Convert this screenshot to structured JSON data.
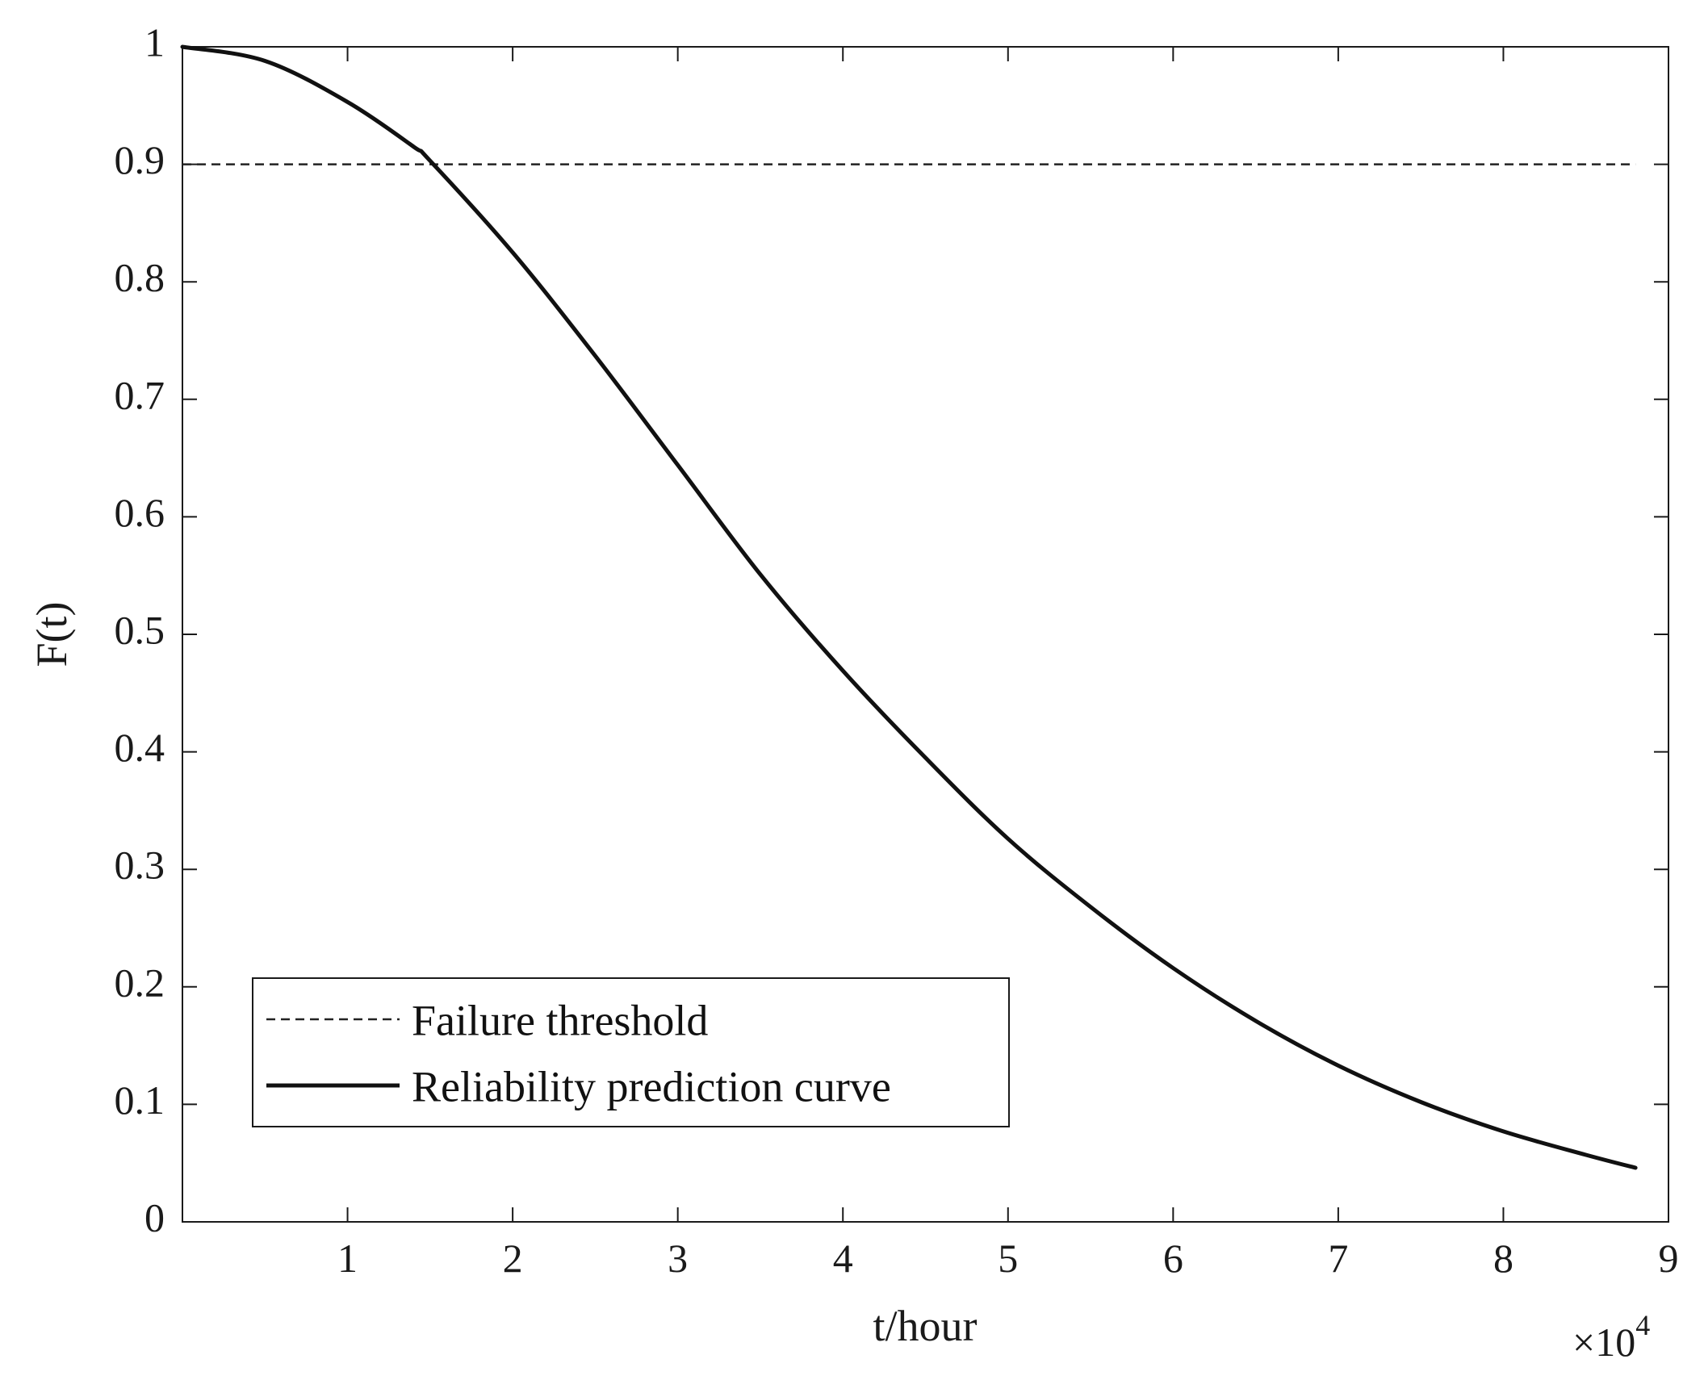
{
  "chart_data": {
    "type": "line",
    "title": "",
    "xlabel": "t/hour",
    "ylabel": "F(t)",
    "x_multiplier_label": "×10",
    "x_multiplier_exponent": "4",
    "x_unit_scale": 10000,
    "xlim": [
      0,
      90000
    ],
    "ylim": [
      0,
      1
    ],
    "x_ticks": [
      10000,
      20000,
      30000,
      40000,
      50000,
      60000,
      70000,
      80000,
      90000
    ],
    "x_tick_labels": [
      "1",
      "2",
      "3",
      "4",
      "5",
      "6",
      "7",
      "8",
      "9"
    ],
    "y_ticks": [
      0,
      0.1,
      0.2,
      0.3,
      0.4,
      0.5,
      0.6,
      0.7,
      0.8,
      0.9,
      1
    ],
    "y_tick_labels": [
      "0",
      "0.1",
      "0.2",
      "0.3",
      "0.4",
      "0.5",
      "0.6",
      "0.7",
      "0.8",
      "0.9",
      "1"
    ],
    "grid": false,
    "legend_position": "bottom-left",
    "colors": {
      "axes": "#1a1a1a",
      "curve": "#111111",
      "threshold": "#222222"
    },
    "series": [
      {
        "name": "Failure threshold",
        "style": "dashed",
        "x": [
          0,
          88000
        ],
        "y": [
          0.9,
          0.9
        ]
      },
      {
        "name": "Reliability prediction curve",
        "style": "solid",
        "x": [
          0,
          5000,
          10000,
          14000,
          15000,
          20000,
          25000,
          30000,
          35000,
          40000,
          45000,
          50000,
          55000,
          60000,
          65000,
          70000,
          75000,
          80000,
          85000,
          88000
        ],
        "y": [
          1.0,
          0.988,
          0.953,
          0.915,
          0.903,
          0.825,
          0.737,
          0.644,
          0.551,
          0.469,
          0.395,
          0.326,
          0.268,
          0.216,
          0.171,
          0.133,
          0.102,
          0.077,
          0.057,
          0.046
        ]
      }
    ]
  }
}
